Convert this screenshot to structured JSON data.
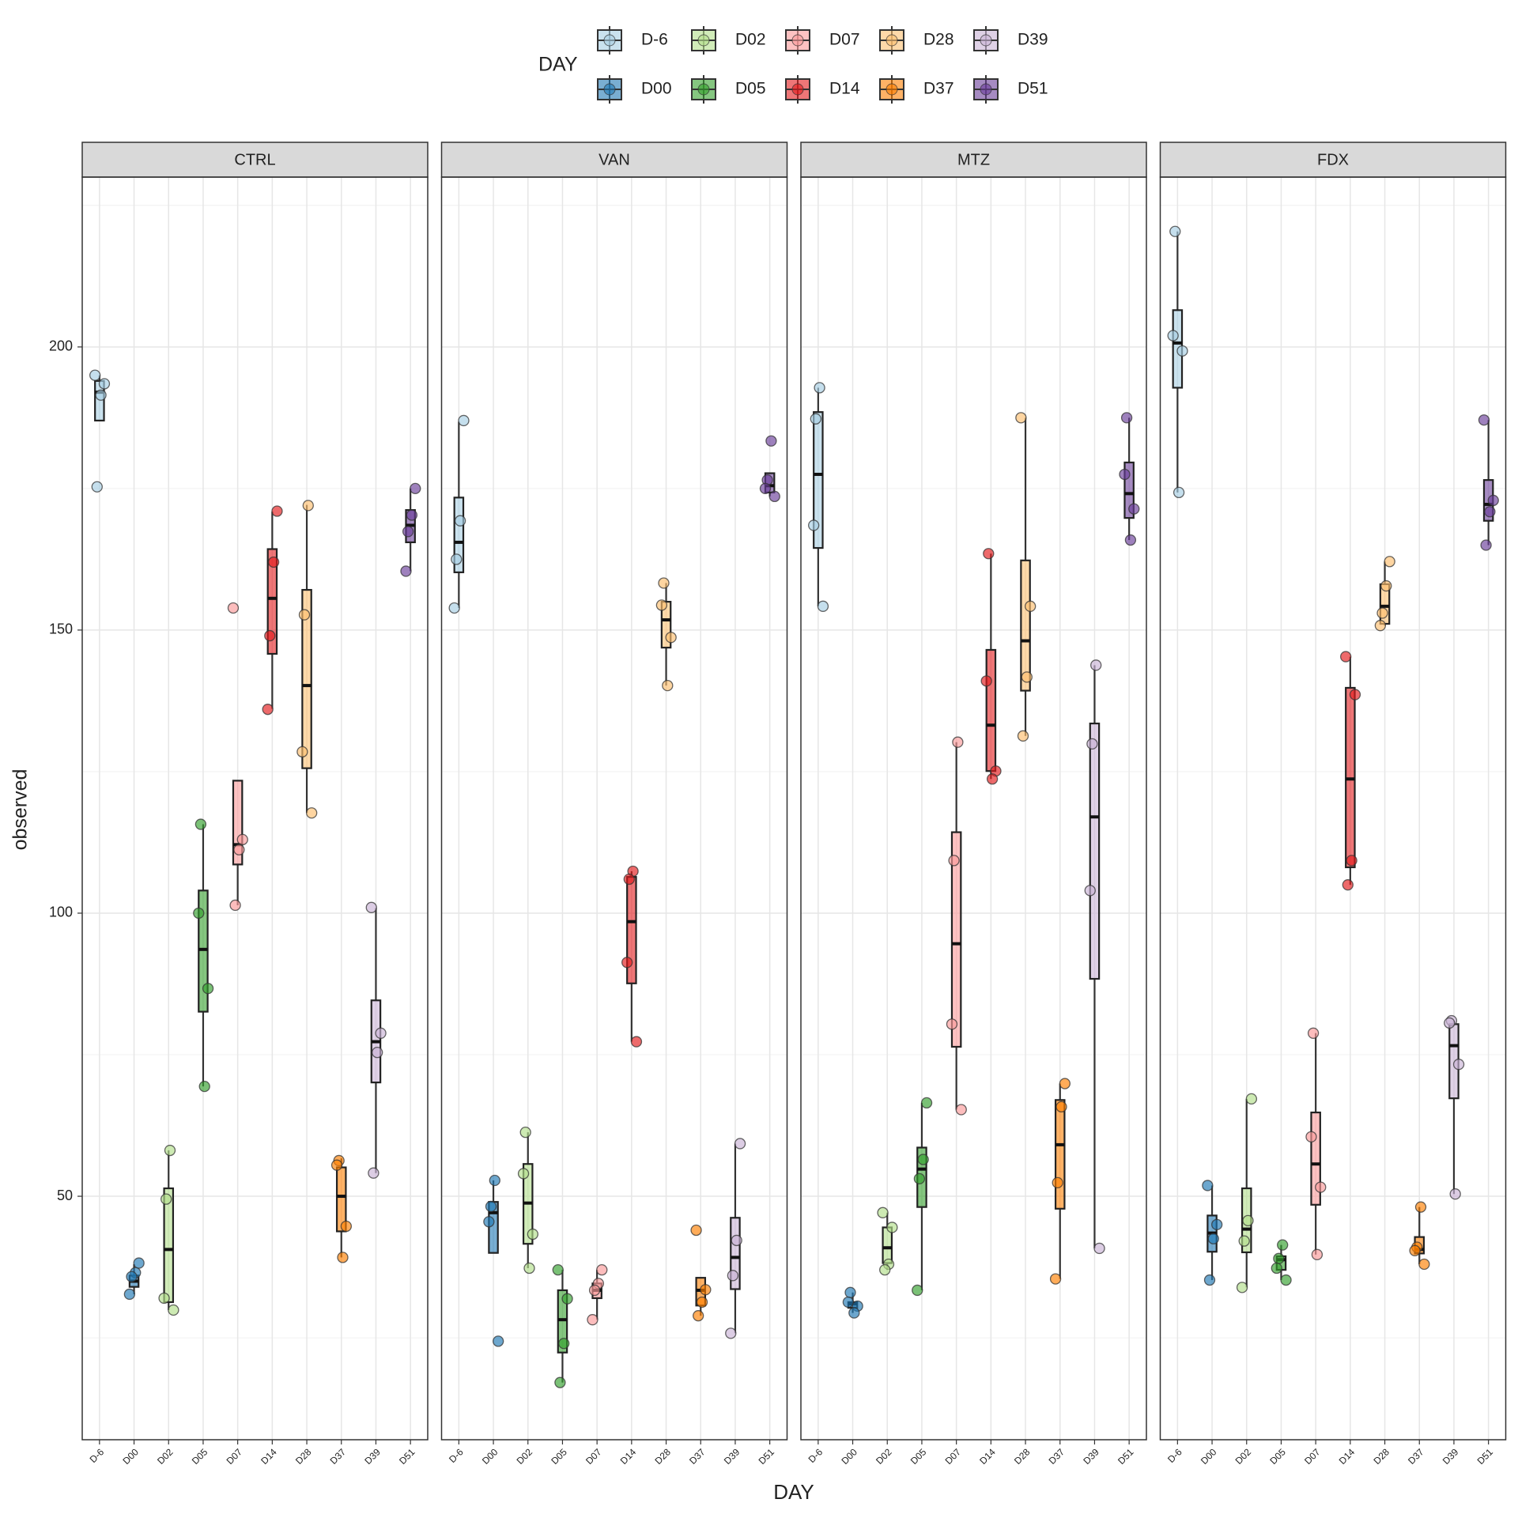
{
  "chart_data": {
    "type": "boxplot",
    "x_label": "DAY",
    "y_label": "observed",
    "legend_title": "DAY",
    "categories": [
      "D-6",
      "D00",
      "D02",
      "D05",
      "D07",
      "D14",
      "D28",
      "D37",
      "D39",
      "D51"
    ],
    "colors": [
      "#a6cee3",
      "#1f78b4",
      "#b2df8a",
      "#33a02c",
      "#fb9a99",
      "#e31a1c",
      "#fdbf6f",
      "#ff7f00",
      "#cab2d6",
      "#6a3d9a"
    ],
    "ylim": [
      7,
      230
    ],
    "yticks": [
      50,
      100,
      150,
      200
    ],
    "minor_yticks": [
      25,
      75,
      125,
      175,
      225
    ],
    "grid": true,
    "facets": [
      {
        "title": "CTRL",
        "boxes": [
          {
            "min": 187,
            "q1": 187,
            "median": 192,
            "q3": 194,
            "max": 195,
            "points": [
              195,
              193.5,
              191.5,
              175.3
            ]
          },
          {
            "min": 32.7,
            "q1": 34,
            "median": 35,
            "q3": 36,
            "max": 38,
            "points": [
              38.2,
              36.5,
              35.8,
              32.7
            ]
          },
          {
            "min": 29.9,
            "q1": 31.3,
            "median": 40.6,
            "q3": 51.4,
            "max": 58.1,
            "points": [
              58.1,
              49.5,
              32,
              29.9
            ]
          },
          {
            "min": 69.4,
            "q1": 82.6,
            "median": 93.6,
            "q3": 104,
            "max": 115.7,
            "points": [
              115.7,
              100,
              86.7,
              69.4
            ]
          },
          {
            "min": 101.4,
            "q1": 108.6,
            "median": 112.1,
            "q3": 123.4,
            "max": 123.4,
            "points": [
              153.9,
              113,
              111.2,
              101.4
            ]
          },
          {
            "min": 136.1,
            "q1": 145.8,
            "median": 155.6,
            "q3": 164.3,
            "max": 170.9,
            "points": [
              171,
              162,
              149,
              136
            ]
          },
          {
            "min": 117.7,
            "q1": 125.6,
            "median": 140.2,
            "q3": 157.1,
            "max": 172.1,
            "points": [
              172,
              152.7,
              128.5,
              117.7
            ]
          },
          {
            "min": 39.2,
            "q1": 43.8,
            "median": 50,
            "q3": 55.1,
            "max": 56.7,
            "points": [
              56.3,
              55.5,
              44.7,
              39.2
            ]
          },
          {
            "min": 54.1,
            "q1": 70.1,
            "median": 77.3,
            "q3": 84.6,
            "max": 100.9,
            "points": [
              101,
              78.8,
              75.4,
              54.1
            ]
          },
          {
            "min": 160.4,
            "q1": 165.5,
            "median": 168.5,
            "q3": 171.2,
            "max": 175,
            "points": [
              175,
              170.3,
              167.4,
              160.4
            ]
          }
        ]
      },
      {
        "title": "VAN",
        "boxes": [
          {
            "min": 153.9,
            "q1": 160.2,
            "median": 165.5,
            "q3": 173.4,
            "max": 186.8,
            "points": [
              187,
              169.3,
              162.5,
              153.9
            ]
          },
          {
            "min": 40,
            "q1": 40,
            "median": 47.1,
            "q3": 49,
            "max": 52.8,
            "points": [
              52.8,
              48.2,
              45.5,
              24.4
            ]
          },
          {
            "min": 37.3,
            "q1": 41.6,
            "median": 48.8,
            "q3": 55.7,
            "max": 61.3,
            "points": [
              61.3,
              54,
              43.3,
              37.3
            ]
          },
          {
            "min": 17.1,
            "q1": 22.4,
            "median": 28.2,
            "q3": 33.4,
            "max": 37,
            "points": [
              37,
              31.9,
              24,
              17.1
            ]
          },
          {
            "min": 28.2,
            "q1": 32,
            "median": 33.4,
            "q3": 34.6,
            "max": 37,
            "points": [
              37,
              34.6,
              33.4,
              28.2
            ]
          },
          {
            "min": 77.3,
            "q1": 87.6,
            "median": 98.5,
            "q3": 106.4,
            "max": 107.4,
            "points": [
              107.4,
              106,
              91.3,
              77.3
            ]
          },
          {
            "min": 140.2,
            "q1": 146.9,
            "median": 151.8,
            "q3": 155,
            "max": 158.3,
            "points": [
              158.3,
              154.4,
              148.7,
              140.2
            ]
          },
          {
            "min": 28.9,
            "q1": 30.7,
            "median": 33.4,
            "q3": 35.6,
            "max": 35.6,
            "points": [
              44,
              33.5,
              31.3,
              28.9
            ]
          },
          {
            "min": 25.8,
            "q1": 33.6,
            "median": 39.2,
            "q3": 46.2,
            "max": 59.3,
            "points": [
              59.3,
              42.2,
              36,
              25.8
            ]
          },
          {
            "min": 173.6,
            "q1": 174.3,
            "median": 175.5,
            "q3": 177.7,
            "max": 177.7,
            "points": [
              183.4,
              176.5,
              175,
              173.6
            ]
          }
        ]
      },
      {
        "title": "MTZ",
        "boxes": [
          {
            "min": 154.2,
            "q1": 164.5,
            "median": 177.5,
            "q3": 188.5,
            "max": 192.8,
            "points": [
              192.8,
              187.3,
              168.5,
              154.2
            ]
          },
          {
            "min": 29.4,
            "q1": 30.3,
            "median": 31,
            "q3": 31.3,
            "max": 33,
            "points": [
              33,
              31.3,
              30.6,
              29.4
            ]
          },
          {
            "min": 37,
            "q1": 38.2,
            "median": 40.9,
            "q3": 44.5,
            "max": 47.1,
            "points": [
              47.1,
              44.5,
              38,
              37
            ]
          },
          {
            "min": 33.4,
            "q1": 48.1,
            "median": 54.8,
            "q3": 58.6,
            "max": 66.5,
            "points": [
              66.5,
              56.5,
              53.1,
              33.4
            ]
          },
          {
            "min": 65.3,
            "q1": 76.4,
            "median": 94.6,
            "q3": 114.3,
            "max": 130.2,
            "points": [
              130.2,
              109.3,
              80.4,
              65.3
            ]
          },
          {
            "min": 123.7,
            "q1": 125.1,
            "median": 133.2,
            "q3": 146.5,
            "max": 163.5,
            "points": [
              163.5,
              141,
              125.1,
              123.7
            ]
          },
          {
            "min": 131.3,
            "q1": 139.3,
            "median": 148.1,
            "q3": 162.3,
            "max": 187.5,
            "points": [
              187.5,
              154.2,
              141.7,
              131.3
            ]
          },
          {
            "min": 35.4,
            "q1": 47.8,
            "median": 59.1,
            "q3": 67,
            "max": 69.9,
            "points": [
              69.9,
              65.8,
              52.4,
              35.4
            ]
          },
          {
            "min": 40.8,
            "q1": 88.4,
            "median": 117,
            "q3": 133.5,
            "max": 143.8,
            "points": [
              143.8,
              129.9,
              104,
              40.8
            ]
          },
          {
            "min": 165.9,
            "q1": 169.8,
            "median": 174.1,
            "q3": 179.6,
            "max": 187.5,
            "points": [
              187.5,
              177.5,
              171.4,
              165.9
            ]
          }
        ]
      },
      {
        "title": "FDX",
        "boxes": [
          {
            "min": 174.3,
            "q1": 192.8,
            "median": 200.7,
            "q3": 206.5,
            "max": 220.4,
            "points": [
              220.4,
              202,
              199.3,
              174.3
            ]
          },
          {
            "min": 35.2,
            "q1": 40.2,
            "median": 43.5,
            "q3": 46.6,
            "max": 51.9,
            "points": [
              51.9,
              45,
              42.5,
              35.2
            ]
          },
          {
            "min": 33.9,
            "q1": 40.1,
            "median": 44.2,
            "q3": 51.4,
            "max": 67.2,
            "points": [
              67.2,
              45.7,
              42.1,
              33.9
            ]
          },
          {
            "min": 35.2,
            "q1": 37,
            "median": 38.8,
            "q3": 39.4,
            "max": 41.4,
            "points": [
              41.4,
              39,
              37.3,
              35.2
            ]
          },
          {
            "min": 39.7,
            "q1": 48.5,
            "median": 55.7,
            "q3": 64.8,
            "max": 78.8,
            "points": [
              78.8,
              60.5,
              51.6,
              39.7
            ]
          },
          {
            "min": 105,
            "q1": 108.1,
            "median": 123.7,
            "q3": 139.8,
            "max": 145.3,
            "points": [
              145.3,
              138.6,
              109.3,
              105
            ]
          },
          {
            "min": 150.8,
            "q1": 151.1,
            "median": 154.2,
            "q3": 158.1,
            "max": 162.1,
            "points": [
              162.1,
              157.8,
              153,
              150.8
            ]
          },
          {
            "min": 38,
            "q1": 39.9,
            "median": 40.6,
            "q3": 42.8,
            "max": 48.1,
            "points": [
              48.1,
              41,
              40.4,
              38
            ]
          },
          {
            "min": 50.4,
            "q1": 67.3,
            "median": 76.6,
            "q3": 80.4,
            "max": 81,
            "points": [
              81,
              80.6,
              73.3,
              50.4
            ]
          },
          {
            "min": 165,
            "q1": 169.3,
            "median": 172.2,
            "q3": 176.5,
            "max": 187.1,
            "points": [
              187.1,
              172.9,
              170.9,
              165
            ]
          }
        ]
      }
    ]
  }
}
